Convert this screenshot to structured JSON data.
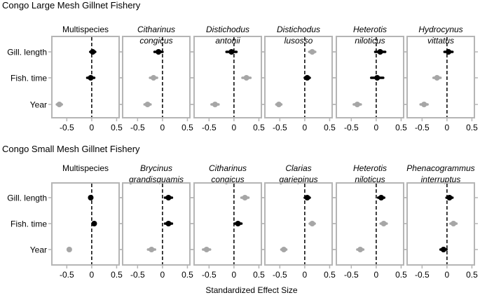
{
  "chart_data": [
    {
      "type": "scatter",
      "title": "Congo Large Mesh Gillnet Fishery",
      "categories": [
        "Gill. length",
        "Fish. time",
        "Year"
      ],
      "xticks": [
        "-0.5",
        "0",
        "0.5"
      ],
      "xlim": [
        -0.8,
        0.55
      ],
      "reference_line": 0,
      "colors": {
        "black": "#000000",
        "gray": "#a6a6a6"
      },
      "panels": [
        {
          "name": "Multispecies",
          "name2": "",
          "italic": false,
          "estimates": [
            0.02,
            -0.02,
            -0.65
          ],
          "ci_halfwidth": [
            0.05,
            0.07,
            0.05
          ],
          "color": [
            "black",
            "black",
            "gray"
          ]
        },
        {
          "name": "Citharinus",
          "name2": "congicus",
          "italic": true,
          "estimates": [
            -0.08,
            -0.18,
            -0.3
          ],
          "ci_halfwidth": [
            0.08,
            0.07,
            0.06
          ],
          "color": [
            "black",
            "gray",
            "gray"
          ]
        },
        {
          "name": "Distichodus",
          "name2": "antonii",
          "italic": true,
          "estimates": [
            -0.05,
            0.25,
            -0.38
          ],
          "ci_halfwidth": [
            0.1,
            0.08,
            0.07
          ],
          "color": [
            "black",
            "gray",
            "gray"
          ]
        },
        {
          "name": "Distichodus",
          "name2": "lusosso",
          "italic": true,
          "estimates": [
            0.15,
            0.05,
            -0.52
          ],
          "ci_halfwidth": [
            0.06,
            0.05,
            0.05
          ],
          "color": [
            "gray",
            "black",
            "gray"
          ]
        },
        {
          "name": "Heterotis",
          "name2": "niloticus",
          "italic": true,
          "estimates": [
            0.08,
            0.02,
            -0.38
          ],
          "ci_halfwidth": [
            0.1,
            0.12,
            0.07
          ],
          "color": [
            "black",
            "black",
            "gray"
          ]
        },
        {
          "name": "Hydrocynus",
          "name2": "vittatus",
          "italic": true,
          "estimates": [
            0.03,
            -0.2,
            -0.46
          ],
          "ci_halfwidth": [
            0.08,
            0.07,
            0.07
          ],
          "color": [
            "black",
            "gray",
            "gray"
          ]
        }
      ]
    },
    {
      "type": "scatter",
      "title": "Congo  Small Mesh Gillnet Fishery",
      "categories": [
        "Gill. length",
        "Fish. time",
        "Year"
      ],
      "xticks": [
        "-0.5",
        "0",
        "0.5"
      ],
      "xlim": [
        -0.8,
        0.55
      ],
      "reference_line": 0,
      "xlabel": "Standardized Effect Size",
      "colors": {
        "black": "#000000",
        "gray": "#a6a6a6"
      },
      "panels": [
        {
          "name": "Multispecies",
          "name2": "",
          "italic": false,
          "estimates": [
            -0.02,
            0.05,
            -0.45
          ],
          "ci_halfwidth": [
            0.02,
            0.02,
            0.02
          ],
          "color": [
            "black",
            "black",
            "gray"
          ]
        },
        {
          "name": "Brycinus",
          "name2": "grandisquamis",
          "italic": true,
          "estimates": [
            0.12,
            0.12,
            -0.22
          ],
          "ci_halfwidth": [
            0.07,
            0.07,
            0.07
          ],
          "color": [
            "black",
            "black",
            "gray"
          ]
        },
        {
          "name": "Citharinus",
          "name2": "congicus",
          "italic": true,
          "estimates": [
            0.22,
            0.08,
            -0.55
          ],
          "ci_halfwidth": [
            0.07,
            0.07,
            0.07
          ],
          "color": [
            "gray",
            "black",
            "gray"
          ]
        },
        {
          "name": "Clarias",
          "name2": "gariepinus",
          "italic": true,
          "estimates": [
            0.05,
            0.15,
            -0.42
          ],
          "ci_halfwidth": [
            0.05,
            0.05,
            0.05
          ],
          "color": [
            "black",
            "gray",
            "gray"
          ]
        },
        {
          "name": "Heterotis",
          "name2": "niloticus",
          "italic": true,
          "estimates": [
            0.1,
            0.15,
            -0.32
          ],
          "ci_halfwidth": [
            0.06,
            0.06,
            0.06
          ],
          "color": [
            "black",
            "gray",
            "gray"
          ]
        },
        {
          "name": "Phenacogrammus",
          "name2": "interruptus",
          "italic": true,
          "estimates": [
            0.05,
            0.13,
            -0.07
          ],
          "ci_halfwidth": [
            0.06,
            0.06,
            0.06
          ],
          "color": [
            "black",
            "gray",
            "black"
          ]
        }
      ]
    }
  ]
}
